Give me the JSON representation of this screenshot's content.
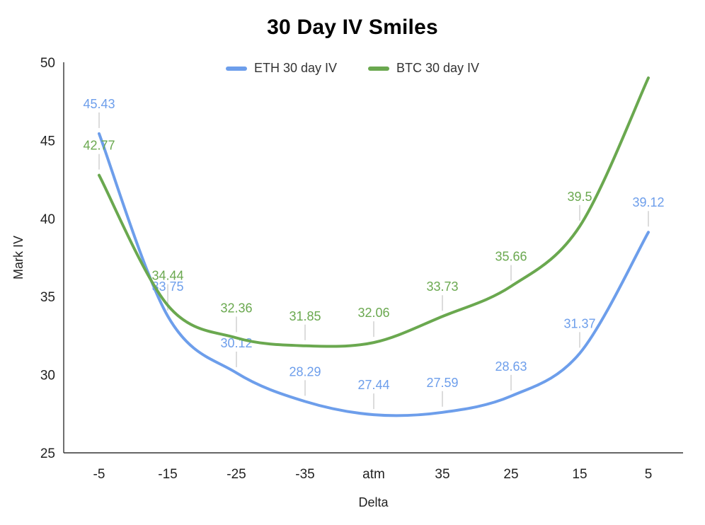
{
  "chart_data": {
    "type": "line",
    "title": "30 Day IV Smiles",
    "xlabel": "Delta",
    "ylabel": "Mark IV",
    "ylim": [
      25,
      50
    ],
    "yticks": [
      25,
      30,
      35,
      40,
      45,
      50
    ],
    "categories": [
      "-5",
      "-15",
      "-25",
      "-35",
      "atm",
      "35",
      "25",
      "15",
      "5"
    ],
    "grid": false,
    "legend_position": "top",
    "background_color": "#ffffff",
    "axis_color": "#333333",
    "tick_label_color": "#222222",
    "label_stem_color": "#dcdcdc",
    "series": [
      {
        "name": "ETH 30 day IV",
        "color": "#6d9eeb",
        "values": [
          45.43,
          33.75,
          30.12,
          28.29,
          27.44,
          27.59,
          28.63,
          31.37,
          39.12
        ],
        "labels": [
          "45.43",
          "33.75",
          "30.12",
          "28.29",
          "27.44",
          "27.59",
          "28.63",
          "31.37",
          "39.12"
        ]
      },
      {
        "name": "BTC 30 day IV",
        "color": "#6aa84f",
        "values": [
          42.77,
          34.44,
          32.36,
          31.85,
          32.06,
          33.73,
          35.66,
          39.5,
          49.0
        ],
        "labels": [
          "42.77",
          "34.44",
          "32.36",
          "31.85",
          "32.06",
          "33.73",
          "35.66",
          "39.5",
          ""
        ]
      }
    ]
  }
}
